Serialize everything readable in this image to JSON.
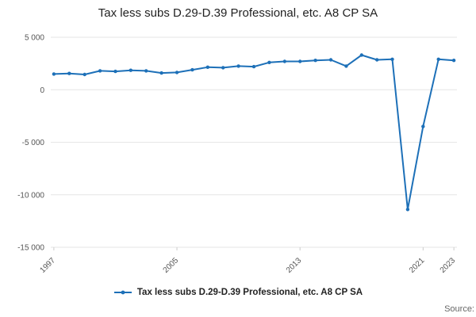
{
  "title": "Tax less subs D.29-D.39 Professional, etc. A8 CP SA",
  "legend": {
    "label": "Tax less subs D.29-D.39 Professional, etc. A8 CP SA"
  },
  "source": "Source:",
  "chart_data": {
    "type": "line",
    "title": "Tax less subs D.29-D.39 Professional, etc. A8 CP SA",
    "xlabel": "",
    "ylabel": "",
    "x": [
      1997,
      1998,
      1999,
      2000,
      2001,
      2002,
      2003,
      2004,
      2005,
      2006,
      2007,
      2008,
      2009,
      2010,
      2011,
      2012,
      2013,
      2014,
      2015,
      2016,
      2017,
      2018,
      2019,
      2020,
      2021,
      2022,
      2023
    ],
    "series": [
      {
        "name": "Tax less subs D.29-D.39 Professional, etc. A8 CP SA",
        "values": [
          1500,
          1550,
          1450,
          1800,
          1750,
          1850,
          1800,
          1600,
          1650,
          1900,
          2150,
          2100,
          2250,
          2200,
          2600,
          2700,
          2700,
          2800,
          2850,
          2250,
          3300,
          2850,
          2900,
          -11400,
          -3500,
          2900,
          2800
        ]
      }
    ],
    "xlim": [
      1996.8,
      2023.2
    ],
    "ylim": [
      -15000,
      5000
    ],
    "yticks": [
      {
        "value": 5000,
        "label": "5 000"
      },
      {
        "value": 0,
        "label": "0"
      },
      {
        "value": -5000,
        "label": "-5 000"
      },
      {
        "value": -10000,
        "label": "-10 000"
      },
      {
        "value": -15000,
        "label": "-15 000"
      }
    ],
    "xticks": [
      1997,
      2005,
      2013,
      2021,
      2023
    ],
    "line_color": "#1d70b8",
    "grid_color": "#e6e6e6",
    "tick_text_color": "#555555",
    "legend_position": "bottom",
    "grid": true
  }
}
